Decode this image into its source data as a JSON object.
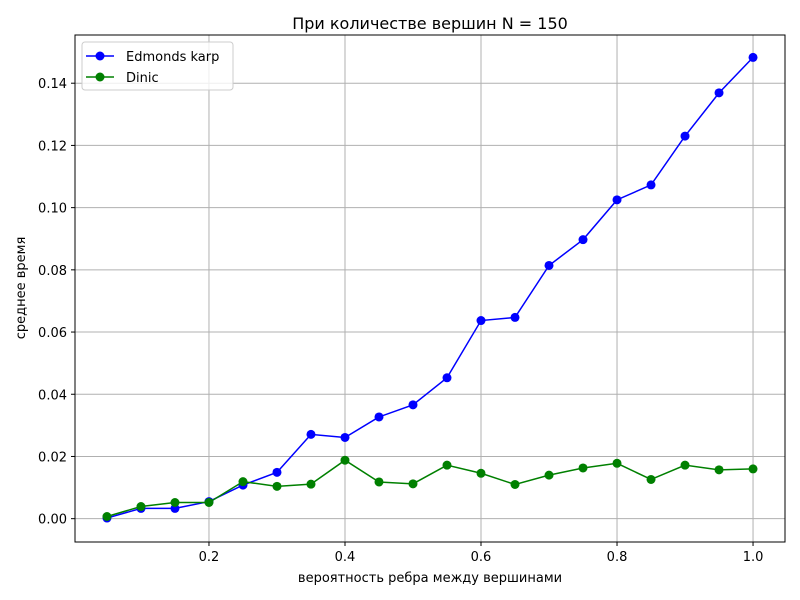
{
  "chart_data": {
    "type": "line",
    "title": "При количестве вершин N = 150",
    "xlabel": "вероятность ребра между вершинами",
    "ylabel": "среднее время",
    "xlim": [
      0.003,
      1.047
    ],
    "ylim": [
      -0.0075,
      0.1555
    ],
    "xticks": [
      0.2,
      0.4,
      0.6,
      0.8,
      1.0
    ],
    "xtick_labels": [
      "0.2",
      "0.4",
      "0.6",
      "0.8",
      "1.0"
    ],
    "yticks": [
      0.0,
      0.02,
      0.04,
      0.06,
      0.08,
      0.1,
      0.12,
      0.14
    ],
    "ytick_labels": [
      "0.00",
      "0.02",
      "0.04",
      "0.06",
      "0.08",
      "0.10",
      "0.12",
      "0.14"
    ],
    "grid": true,
    "legend_position": "top-left",
    "x": [
      0.05,
      0.1,
      0.15,
      0.2,
      0.25,
      0.3,
      0.35,
      0.4,
      0.45,
      0.5,
      0.55,
      0.6,
      0.65,
      0.7,
      0.75,
      0.8,
      0.85,
      0.9,
      0.95,
      1.0
    ],
    "series": [
      {
        "name": "Edmonds karp",
        "color": "#0000ff",
        "values": [
          0.0002,
          0.0033,
          0.0033,
          0.0055,
          0.0108,
          0.0149,
          0.0271,
          0.0261,
          0.0327,
          0.0366,
          0.0453,
          0.0637,
          0.0647,
          0.0814,
          0.0897,
          0.1025,
          0.1073,
          0.123,
          0.1369,
          0.1483
        ]
      },
      {
        "name": "Dinic",
        "color": "#008000",
        "values": [
          0.0007,
          0.0039,
          0.0052,
          0.0052,
          0.0119,
          0.0104,
          0.0111,
          0.0188,
          0.0118,
          0.0112,
          0.0172,
          0.0146,
          0.011,
          0.014,
          0.0163,
          0.0178,
          0.0126,
          0.0172,
          0.0157,
          0.016
        ]
      }
    ]
  }
}
